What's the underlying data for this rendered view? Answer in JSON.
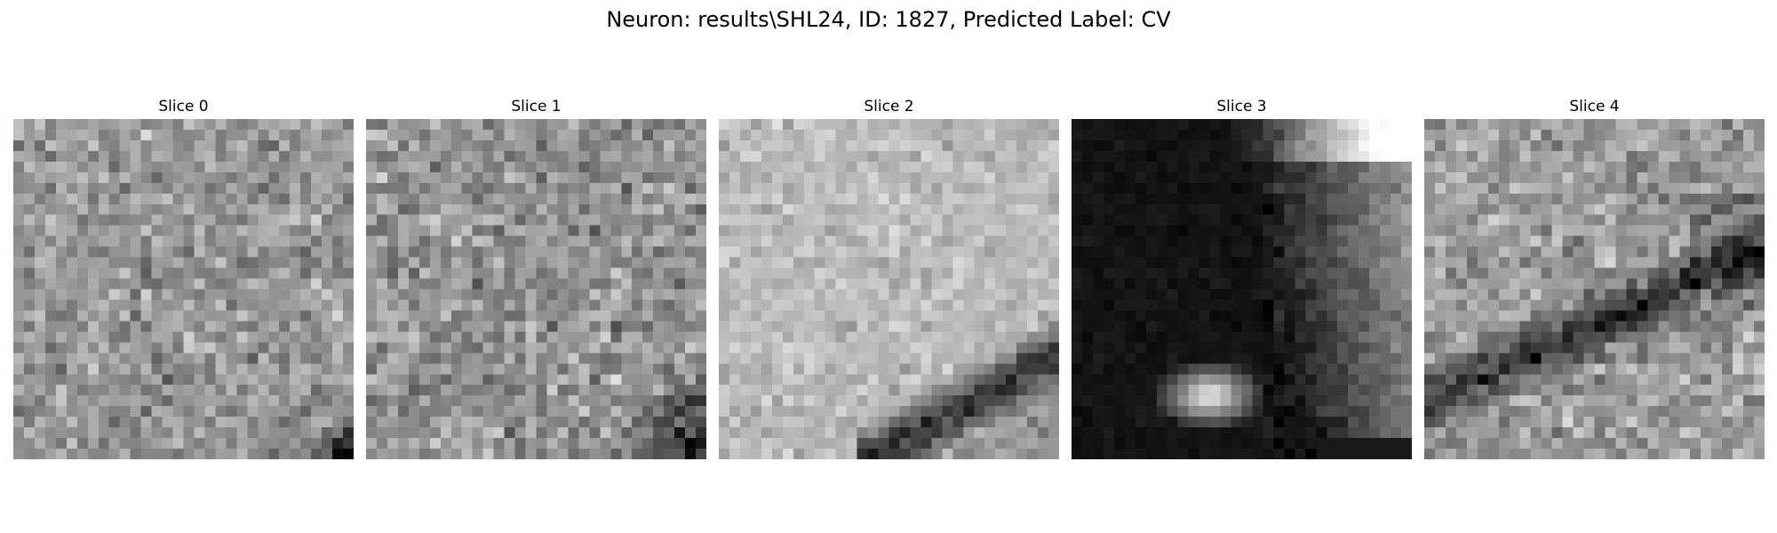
{
  "figure": {
    "title": "Neuron: results\\SHL24, ID: 1827, Predicted Label: CV"
  },
  "panels": [
    {
      "title": "Slice 0",
      "content": "noise-with-dark-bottom-right-corner"
    },
    {
      "title": "Slice 1",
      "content": "noise-with-dark-bottom-right"
    },
    {
      "title": "Slice 2",
      "content": "bright-with-dark-diagonal-band"
    },
    {
      "title": "Slice 3",
      "content": "dark-region-with-bright-blob"
    },
    {
      "title": "Slice 4",
      "content": "noise-with-dark-diagonal-band"
    }
  ],
  "colormap": "gray"
}
